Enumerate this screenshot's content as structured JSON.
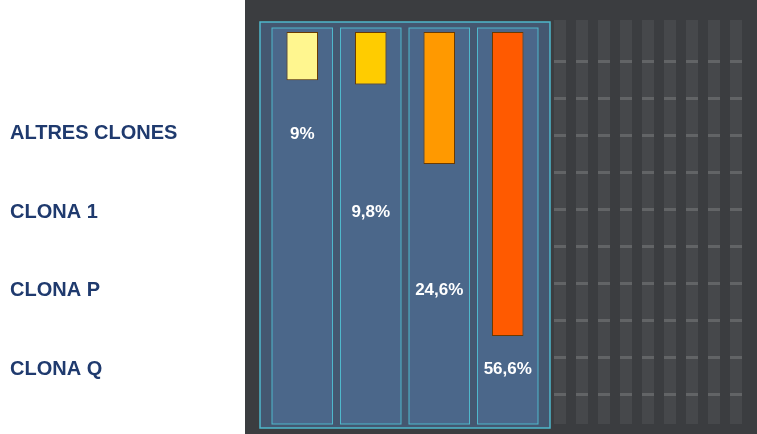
{
  "chart_data": {
    "type": "bar",
    "categories": [
      "ALTRES CLONES",
      "CLONA 1",
      "CLONA P",
      "CLONA Q"
    ],
    "values": [
      9,
      9.8,
      24.6,
      56.6
    ],
    "value_labels": [
      "9%",
      "9,8%",
      "24,6%",
      "56,6%"
    ],
    "colors": [
      "#fff68f",
      "#ffcc00",
      "#ff9900",
      "#ff5a00"
    ],
    "ylim": [
      0,
      73
    ],
    "data_labels": true,
    "tick_labels": false,
    "grid": false
  }
}
